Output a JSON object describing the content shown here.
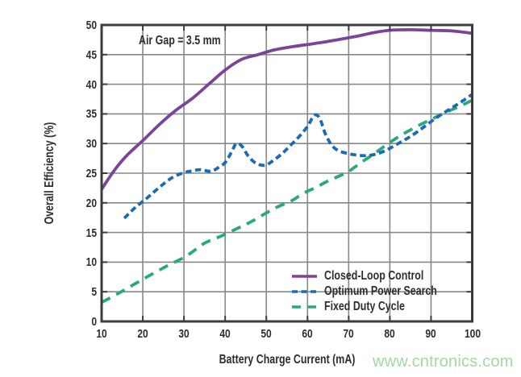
{
  "watermark": {
    "text": "www.cntronics.com",
    "color": "#a5d6a5"
  },
  "chart_data": {
    "type": "line",
    "annotation": "Air Gap = 3.5 mm",
    "xlabel": "Battery Charge Current (mA)",
    "ylabel": "Overall Efficiency (%)",
    "xlim": [
      10,
      100
    ],
    "ylim": [
      0,
      50
    ],
    "x_ticks": [
      10,
      20,
      30,
      40,
      50,
      60,
      70,
      80,
      90,
      100
    ],
    "y_ticks": [
      0,
      5,
      10,
      15,
      20,
      25,
      30,
      35,
      40,
      45,
      50
    ],
    "grid": true,
    "legend_position": "inside bottom-right",
    "grid_color": "#898989",
    "border_color": "#3c3c3e",
    "series": [
      {
        "name": "Fixed Duty Cycle",
        "color": "#29a87c",
        "style": "dashed",
        "dash": [
          12,
          8.5
        ],
        "points": [
          [
            10,
            3.2
          ],
          [
            14,
            4.7
          ],
          [
            18,
            6.3
          ],
          [
            22,
            7.9
          ],
          [
            26,
            9.4
          ],
          [
            30,
            10.8
          ],
          [
            33,
            12.2
          ],
          [
            35,
            13.2
          ],
          [
            38,
            14.1
          ],
          [
            40,
            14.7
          ],
          [
            43,
            15.7
          ],
          [
            46,
            16.7
          ],
          [
            50,
            18.3
          ],
          [
            53,
            19.4
          ],
          [
            56,
            20.3
          ],
          [
            59,
            21.6
          ],
          [
            62,
            22.6
          ],
          [
            65,
            23.7
          ],
          [
            68,
            24.6
          ],
          [
            70,
            25.3
          ],
          [
            73,
            26.8
          ],
          [
            76,
            28.2
          ],
          [
            79,
            29.7
          ],
          [
            82,
            31.1
          ],
          [
            85,
            32.3
          ],
          [
            88,
            33.4
          ],
          [
            91,
            34.4
          ],
          [
            94,
            35.4
          ],
          [
            97,
            36.3
          ],
          [
            100,
            37.3
          ]
        ]
      },
      {
        "name": "Optimum Power Search",
        "color": "#1a6ab4",
        "style": "dashed",
        "dash": [
          7.5,
          4.5
        ],
        "points": [
          [
            15.5,
            17.4
          ],
          [
            18,
            19.1
          ],
          [
            21,
            20.8
          ],
          [
            24,
            22.6
          ],
          [
            27,
            24.2
          ],
          [
            30,
            25.1
          ],
          [
            32,
            25.4
          ],
          [
            34,
            25.6
          ],
          [
            36.5,
            25.3
          ],
          [
            38,
            25.8
          ],
          [
            40,
            26.8
          ],
          [
            41.5,
            28.5
          ],
          [
            42.7,
            30.0
          ],
          [
            44,
            29.6
          ],
          [
            45.5,
            28.0
          ],
          [
            47,
            26.9
          ],
          [
            48.5,
            26.4
          ],
          [
            50,
            26.4
          ],
          [
            52,
            27.3
          ],
          [
            54,
            28.4
          ],
          [
            56,
            29.8
          ],
          [
            58,
            31.2
          ],
          [
            60,
            32.9
          ],
          [
            61.7,
            34.8
          ],
          [
            63,
            34.2
          ],
          [
            64.3,
            31.7
          ],
          [
            65.8,
            29.8
          ],
          [
            67.5,
            28.8
          ],
          [
            70,
            28.3
          ],
          [
            72.5,
            28.0
          ],
          [
            75,
            28.0
          ],
          [
            77.5,
            28.4
          ],
          [
            80,
            29.2
          ],
          [
            82.5,
            30.2
          ],
          [
            85,
            31.2
          ],
          [
            87.5,
            32.4
          ],
          [
            90,
            33.7
          ],
          [
            92.5,
            34.9
          ],
          [
            95,
            36.0
          ],
          [
            97.5,
            37.1
          ],
          [
            100,
            38.3
          ]
        ]
      },
      {
        "name": "Closed-Loop Control",
        "color": "#7b4399",
        "style": "solid",
        "dash": null,
        "points": [
          [
            10,
            22.3
          ],
          [
            13,
            25.4
          ],
          [
            16,
            27.9
          ],
          [
            20,
            30.5
          ],
          [
            24,
            33.2
          ],
          [
            28,
            35.6
          ],
          [
            32,
            37.6
          ],
          [
            36,
            40.0
          ],
          [
            40,
            42.4
          ],
          [
            44,
            44.2
          ],
          [
            48,
            45.0
          ],
          [
            52,
            45.8
          ],
          [
            56,
            46.3
          ],
          [
            60,
            46.7
          ],
          [
            64,
            47.1
          ],
          [
            68,
            47.6
          ],
          [
            72,
            48.1
          ],
          [
            76,
            48.7
          ],
          [
            80,
            49.1
          ],
          [
            85,
            49.2
          ],
          [
            90,
            49.1
          ],
          [
            95,
            49.0
          ],
          [
            100,
            48.6
          ]
        ]
      }
    ],
    "legend_order": [
      "Closed-Loop Control",
      "Optimum Power Search",
      "Fixed Duty Cycle"
    ]
  }
}
